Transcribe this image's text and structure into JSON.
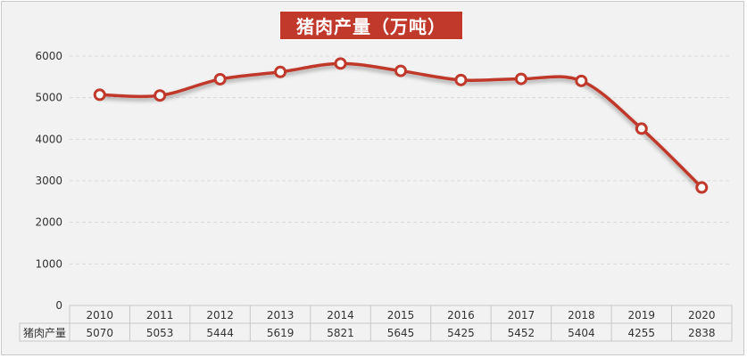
{
  "chart_data": {
    "type": "line",
    "title": "猪肉产量（万吨）",
    "series_label": "猪肉产量",
    "categories": [
      "2010",
      "2011",
      "2012",
      "2013",
      "2014",
      "2015",
      "2016",
      "2017",
      "2018",
      "2019",
      "2020"
    ],
    "values": [
      5070,
      5053,
      5444,
      5619,
      5821,
      5645,
      5425,
      5452,
      5404,
      4255,
      2838
    ],
    "ylim": [
      0,
      6000
    ],
    "yticks": [
      0,
      1000,
      2000,
      3000,
      4000,
      5000,
      6000
    ],
    "grid": true,
    "smooth": true,
    "data_table": true
  },
  "colors": {
    "line": "#c0392b",
    "title_bg": "#c0392b",
    "grid": "#d9d9d9",
    "background": "#f2f2f2"
  }
}
